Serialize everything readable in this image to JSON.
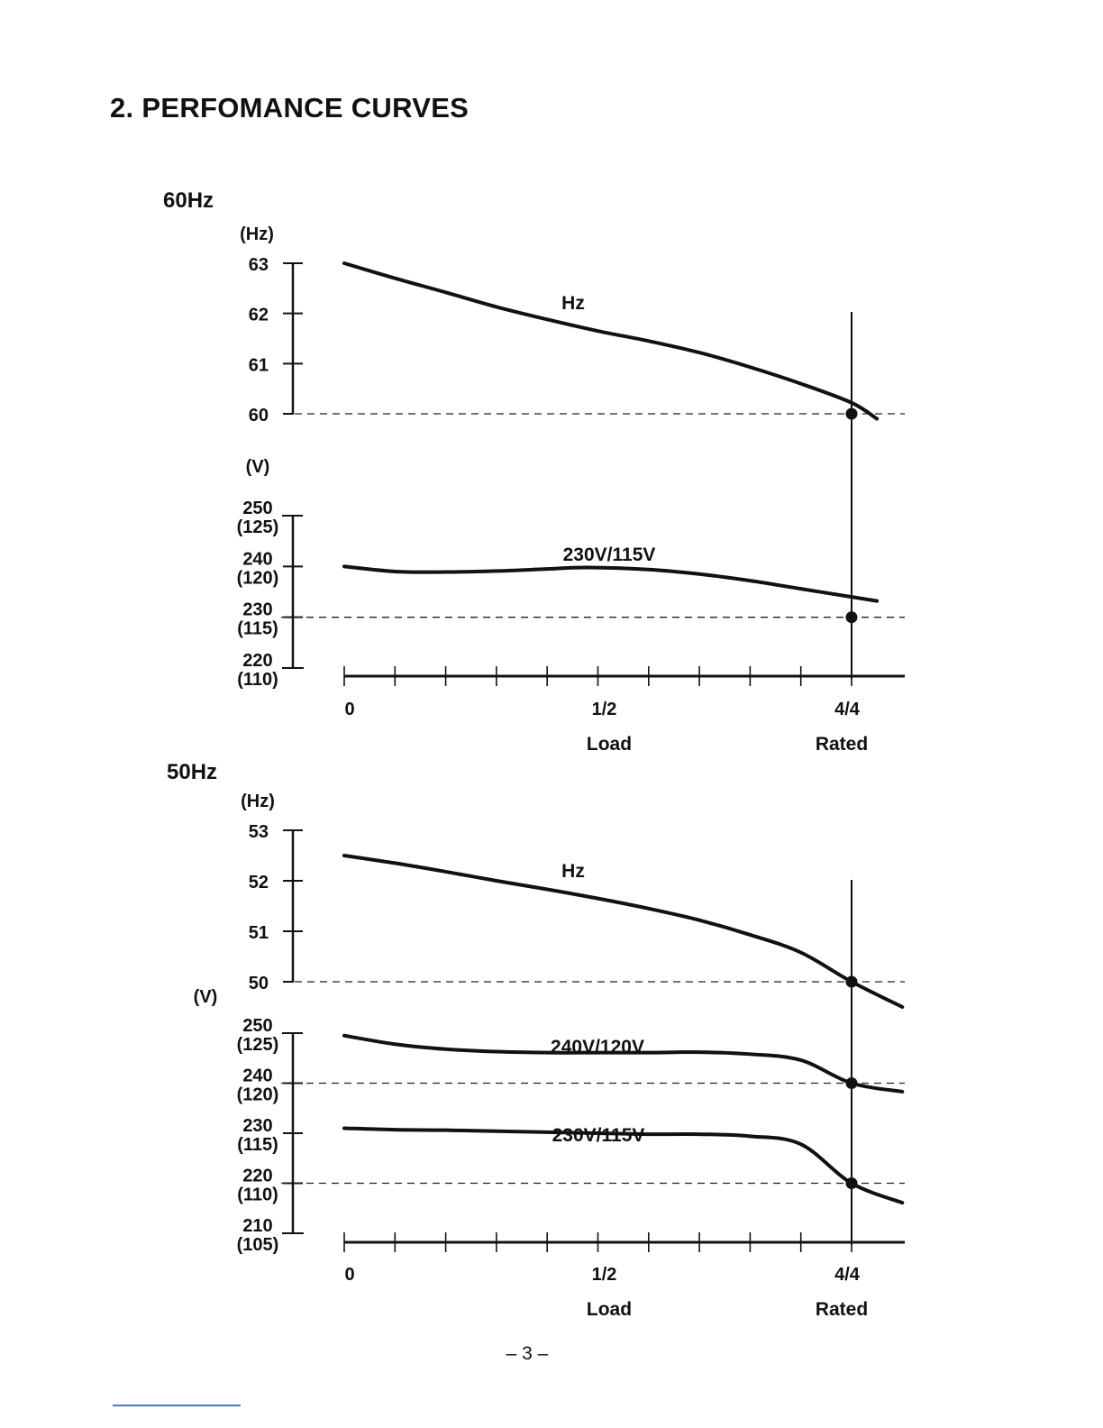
{
  "page": {
    "title": "2. PERFOMANCE CURVES",
    "page_number": "– 3 –"
  },
  "chart_data": [
    {
      "type": "line",
      "section_label": "60Hz",
      "x_ticks": [
        "0",
        "1/2",
        "4/4"
      ],
      "x_axis_label": "Load",
      "rated_label": "Rated",
      "x_range": [
        0,
        1.1
      ],
      "grid": false,
      "hz_axis": {
        "unit_label": "(Hz)",
        "ticks": [
          {
            "value": 63,
            "label": "63"
          },
          {
            "value": 62,
            "label": "62"
          },
          {
            "value": 61,
            "label": "61"
          },
          {
            "value": 60,
            "label": "60"
          }
        ],
        "range": [
          60,
          63
        ]
      },
      "v_axis": {
        "unit_label": "(V)",
        "ticks": [
          {
            "value": 250,
            "label": "250",
            "sub": "(125)"
          },
          {
            "value": 240,
            "label": "240",
            "sub": "(120)"
          },
          {
            "value": 230,
            "label": "230",
            "sub": "(115)"
          },
          {
            "value": 220,
            "label": "220",
            "sub": "(110)"
          }
        ],
        "range": [
          220,
          250
        ]
      },
      "series": [
        {
          "name": "Hz",
          "axis": "hz",
          "x": [
            0,
            0.1,
            0.2,
            0.3,
            0.4,
            0.5,
            0.6,
            0.7,
            0.8,
            0.9,
            1.0,
            1.05
          ],
          "y": [
            63.0,
            62.7,
            62.42,
            62.13,
            61.88,
            61.65,
            61.45,
            61.22,
            60.93,
            60.6,
            60.22,
            59.9
          ]
        },
        {
          "name": "230V/115V",
          "axis": "v",
          "x": [
            0,
            0.1,
            0.2,
            0.3,
            0.4,
            0.48,
            0.6,
            0.7,
            0.8,
            0.9,
            1.0,
            1.05
          ],
          "y": [
            240.0,
            239.0,
            238.9,
            239.1,
            239.5,
            239.8,
            239.4,
            238.5,
            237.2,
            235.6,
            234.0,
            233.2
          ]
        }
      ],
      "reference_lines": [
        {
          "axis": "hz",
          "value": 60
        },
        {
          "axis": "v",
          "value": 230
        }
      ],
      "markers": [
        {
          "axis": "hz",
          "x": 1.0,
          "y": 60
        },
        {
          "axis": "v",
          "x": 1.0,
          "y": 230
        }
      ],
      "rated_x": 1.0
    },
    {
      "type": "line",
      "section_label": "50Hz",
      "x_ticks": [
        "0",
        "1/2",
        "4/4"
      ],
      "x_axis_label": "Load",
      "rated_label": "Rated",
      "x_range": [
        0,
        1.1
      ],
      "grid": false,
      "hz_axis": {
        "unit_label": "(Hz)",
        "ticks": [
          {
            "value": 53,
            "label": "53"
          },
          {
            "value": 52,
            "label": "52"
          },
          {
            "value": 51,
            "label": "51"
          },
          {
            "value": 50,
            "label": "50"
          }
        ],
        "range": [
          50,
          53
        ]
      },
      "v_axis": {
        "unit_label": "(V)",
        "ticks": [
          {
            "value": 250,
            "label": "250",
            "sub": "(125)"
          },
          {
            "value": 240,
            "label": "240",
            "sub": "(120)"
          },
          {
            "value": 230,
            "label": "230",
            "sub": "(115)"
          },
          {
            "value": 220,
            "label": "220",
            "sub": "(110)"
          },
          {
            "value": 210,
            "label": "210",
            "sub": "(105)"
          }
        ],
        "range": [
          210,
          250
        ]
      },
      "series": [
        {
          "name": "Hz",
          "axis": "hz",
          "x": [
            0,
            0.1,
            0.2,
            0.3,
            0.4,
            0.5,
            0.6,
            0.7,
            0.8,
            0.9,
            1.0,
            1.1
          ],
          "y": [
            52.5,
            52.35,
            52.18,
            52.0,
            51.83,
            51.65,
            51.45,
            51.22,
            50.93,
            50.58,
            50.0,
            49.5
          ]
        },
        {
          "name": "240V/120V",
          "axis": "v",
          "x": [
            0,
            0.1,
            0.2,
            0.3,
            0.4,
            0.5,
            0.6,
            0.7,
            0.8,
            0.9,
            1.0,
            1.1
          ],
          "y": [
            249.5,
            247.8,
            246.8,
            246.3,
            246.1,
            246.1,
            246.1,
            246.2,
            245.8,
            244.6,
            240.0,
            238.3
          ]
        },
        {
          "name": "230V/115V",
          "axis": "v",
          "x": [
            0,
            0.1,
            0.2,
            0.3,
            0.4,
            0.5,
            0.6,
            0.7,
            0.8,
            0.9,
            1.0,
            1.1
          ],
          "y": [
            231.0,
            230.7,
            230.6,
            230.4,
            230.2,
            230.0,
            229.8,
            229.8,
            229.4,
            227.8,
            220.0,
            216.1
          ]
        }
      ],
      "reference_lines": [
        {
          "axis": "hz",
          "value": 50
        },
        {
          "axis": "v",
          "value": 240
        },
        {
          "axis": "v",
          "value": 220
        }
      ],
      "markers": [
        {
          "axis": "hz",
          "x": 1.0,
          "y": 50
        },
        {
          "axis": "v",
          "x": 1.0,
          "y": 240
        },
        {
          "axis": "v",
          "x": 1.0,
          "y": 220
        }
      ],
      "rated_x": 1.0
    }
  ]
}
